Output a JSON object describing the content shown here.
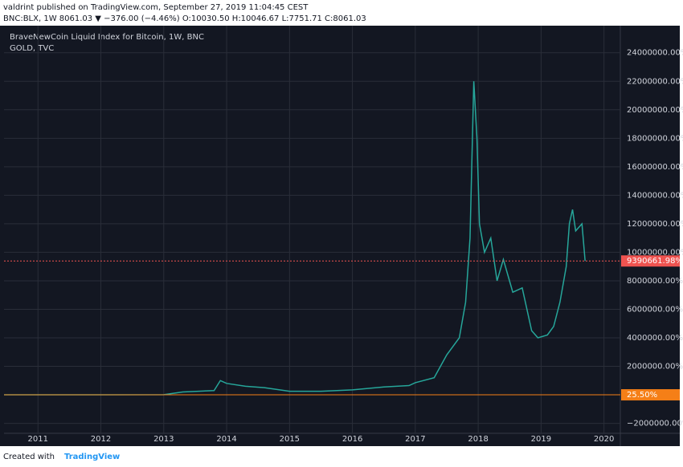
{
  "chart_data": {
    "type": "line",
    "header": [
      "valdrint published on TradingView.com, September 27, 2019 11:04:45 CEST",
      "BNC:BLX, 1W  8061.03 ▼ −376.00 (−4.46%) O:10030.50 H:10046.67 L:7751.71 C:8061.03"
    ],
    "title": "BraveNewCoin Liquid Index for Bitcoin, 1W, BNC",
    "subtitle": "GOLD, TVC",
    "footer": [
      "Created with",
      "TradingView"
    ],
    "x": [
      2010.46,
      2012.0,
      2013.0,
      2013.3,
      2013.8,
      2013.9,
      2014.0,
      2014.3,
      2014.6,
      2015.0,
      2015.5,
      2016.0,
      2016.5,
      2016.9,
      2017.0,
      2017.3,
      2017.5,
      2017.7,
      2017.8,
      2017.87,
      2017.93,
      2017.98,
      2018.02,
      2018.1,
      2018.2,
      2018.3,
      2018.4,
      2018.55,
      2018.7,
      2018.85,
      2018.95,
      2019.1,
      2019.2,
      2019.3,
      2019.4,
      2019.45,
      2019.5,
      2019.55,
      2019.65,
      2019.7
    ],
    "series": [
      {
        "color": "#26a69a",
        "values": [
          0,
          0,
          10000,
          200000,
          300000,
          1000000,
          800000,
          600000,
          500000,
          250000,
          250000,
          350000,
          550000,
          650000,
          850000,
          1200000,
          2800000,
          4000000,
          6500000,
          11000000,
          22000000,
          18000000,
          12000000,
          10000000,
          11000000,
          8000000,
          9500000,
          7200000,
          7500000,
          4500000,
          4000000,
          4200000,
          4800000,
          6500000,
          9000000,
          12000000,
          13000000,
          11500000,
          12000000,
          9390661.98
        ]
      }
    ],
    "xlim": [
      2010.46,
      2020.26
    ],
    "xticks": [
      2011,
      2012,
      2013,
      2014,
      2015,
      2016,
      2017,
      2018,
      2019,
      2020
    ],
    "ylim": [
      -2700000,
      25900000
    ],
    "yticks": [
      {
        "value": -2000000,
        "label": "−2000000.00%"
      },
      {
        "value": 2000000,
        "label": "2000000.00%"
      },
      {
        "value": 4000000,
        "label": "4000000.00%"
      },
      {
        "value": 6000000,
        "label": "6000000.00%"
      },
      {
        "value": 8000000,
        "label": "8000000.00%"
      },
      {
        "value": 10000000,
        "label": "10000000.00%"
      },
      {
        "value": 12000000,
        "label": "12000000.00%"
      },
      {
        "value": 14000000,
        "label": "14000000.00%"
      },
      {
        "value": 16000000,
        "label": "16000000.00%"
      },
      {
        "value": 18000000,
        "label": "18000000.00%"
      },
      {
        "value": 20000000,
        "label": "20000000.00%"
      },
      {
        "value": 22000000,
        "label": "22000000.00%"
      },
      {
        "value": 24000000,
        "label": "24000000.00%"
      }
    ],
    "grid": true,
    "price_lines": [
      {
        "value": 9390661.98,
        "label": "9390661.98%",
        "color": "#ef5350"
      },
      {
        "value": 25.5,
        "label": "25.50%",
        "color": "#f57f17"
      }
    ]
  }
}
